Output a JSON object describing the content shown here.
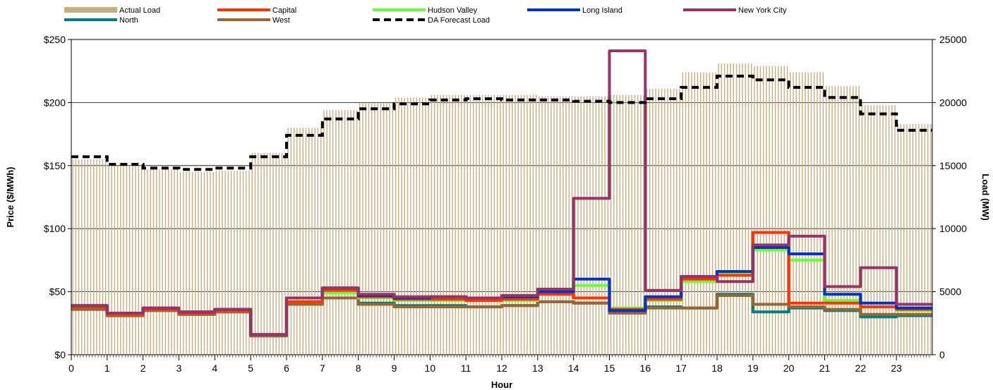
{
  "chart_data": {
    "type": "line",
    "title": "",
    "xlabel": "Hour",
    "ylabel": "Price ($/MWh)",
    "y2label": "Load (MW)",
    "x_ticks": [
      "0",
      "1",
      "2",
      "3",
      "4",
      "5",
      "6",
      "7",
      "8",
      "9",
      "10",
      "11",
      "12",
      "13",
      "14",
      "15",
      "16",
      "17",
      "18",
      "19",
      "20",
      "21",
      "22",
      "23"
    ],
    "x_range": [
      0,
      24
    ],
    "ylim": [
      0,
      250
    ],
    "y_ticks": [
      "$0",
      "$50",
      "$100",
      "$150",
      "$200",
      "$250"
    ],
    "y2lim": [
      0,
      25000
    ],
    "y2_ticks": [
      "0",
      "5000",
      "10000",
      "15000",
      "20000",
      "25000"
    ],
    "grid": "horizontal",
    "legend_position": "top",
    "load_series": [
      {
        "name": "Actual Load",
        "style": "bar",
        "color": "#c8ad7f",
        "values": [
          15500,
          15000,
          14700,
          14500,
          14600,
          16000,
          18000,
          19400,
          20000,
          20400,
          20600,
          20600,
          20600,
          20500,
          20500,
          20600,
          21100,
          22400,
          23100,
          22900,
          22400,
          21300,
          19800,
          18300
        ]
      },
      {
        "name": "DA Forecast Load",
        "style": "dashed",
        "color": "#000000",
        "values": [
          15700,
          15100,
          14800,
          14700,
          14800,
          15700,
          17400,
          18700,
          19500,
          19900,
          20200,
          20300,
          20200,
          20200,
          20100,
          20000,
          20300,
          21200,
          22100,
          21800,
          21200,
          20400,
          19100,
          17800
        ]
      }
    ],
    "price_series": [
      {
        "name": "Actual Load",
        "color": "#c8ad7f",
        "legend_only": true
      },
      {
        "name": "Capital",
        "color": "#ff3300",
        "values": [
          38,
          32,
          36,
          33,
          35,
          16,
          42,
          51,
          46,
          44,
          44,
          43,
          44,
          48,
          45,
          36,
          44,
          60,
          63,
          97,
          41,
          41,
          38,
          36
        ]
      },
      {
        "name": "Hudson Valley",
        "color": "#66ff33",
        "values": [
          38,
          32,
          36,
          33,
          35,
          16,
          42,
          49,
          45,
          43,
          43,
          43,
          43,
          48,
          55,
          37,
          43,
          58,
          64,
          83,
          75,
          43,
          38,
          35
        ]
      },
      {
        "name": "Long Island",
        "color": "#0033cc",
        "values": [
          39,
          33,
          37,
          34,
          36,
          16,
          45,
          53,
          47,
          45,
          46,
          45,
          46,
          50,
          60,
          35,
          46,
          62,
          66,
          85,
          80,
          48,
          41,
          37
        ]
      },
      {
        "name": "New York City",
        "color": "#993366",
        "values": [
          39,
          33,
          37,
          34,
          36,
          16,
          45,
          53,
          48,
          46,
          46,
          45,
          47,
          52,
          124,
          241,
          51,
          62,
          58,
          87,
          94,
          54,
          69,
          40
        ]
      },
      {
        "name": "North",
        "color": "#008080",
        "values": [
          36,
          31,
          35,
          32,
          34,
          15,
          40,
          45,
          41,
          39,
          39,
          38,
          39,
          42,
          41,
          33,
          38,
          37,
          48,
          34,
          37,
          35,
          30,
          31
        ]
      },
      {
        "name": "West",
        "color": "#996633",
        "values": [
          36,
          31,
          35,
          32,
          34,
          15,
          40,
          45,
          40,
          38,
          38,
          38,
          39,
          42,
          41,
          33,
          37,
          37,
          47,
          40,
          38,
          36,
          32,
          32
        ]
      },
      {
        "name": "DA Forecast Load",
        "color": "#000000",
        "legend_only": true,
        "dashed": true
      }
    ]
  }
}
